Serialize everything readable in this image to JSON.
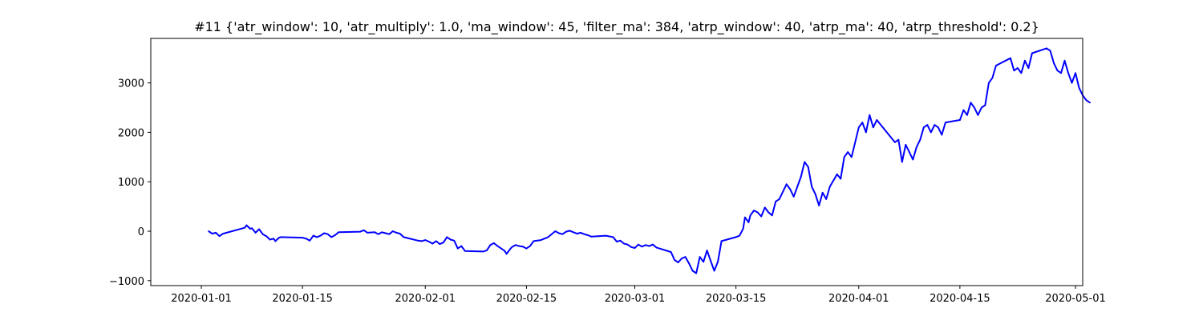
{
  "chart_data": {
    "type": "line",
    "title": "#11 {'atr_window': 10, 'atr_multiply': 1.0, 'ma_window': 45, 'filter_ma': 384, 'atrp_window': 40, 'atrp_ma': 40, 'atrp_threshold': 0.2}",
    "xlabel": "",
    "ylabel": "",
    "x_axis_type": "date",
    "xlim": [
      "2019-12-25",
      "2020-05-02"
    ],
    "ylim": [
      -1100,
      3900
    ],
    "x_ticks": [
      "2020-01-01",
      "2020-01-15",
      "2020-02-01",
      "2020-02-15",
      "2020-03-01",
      "2020-03-15",
      "2020-04-01",
      "2020-04-15",
      "2020-05-01"
    ],
    "y_ticks": [
      -1000,
      0,
      1000,
      2000,
      3000
    ],
    "grid": false,
    "legend": "none",
    "series": [
      {
        "color": "#0000ff",
        "points": [
          [
            "2020-01-02",
            0
          ],
          [
            "2020-01-02 12:00",
            -50
          ],
          [
            "2020-01-03",
            -30
          ],
          [
            "2020-01-03 12:00",
            -100
          ],
          [
            "2020-01-04",
            -50
          ],
          [
            "2020-01-04 12:00",
            -30
          ],
          [
            "2020-01-07",
            70
          ],
          [
            "2020-01-07 06:00",
            120
          ],
          [
            "2020-01-07 18:00",
            50
          ],
          [
            "2020-01-08",
            60
          ],
          [
            "2020-01-08 12:00",
            -30
          ],
          [
            "2020-01-09",
            40
          ],
          [
            "2020-01-09 12:00",
            -60
          ],
          [
            "2020-01-10",
            -100
          ],
          [
            "2020-01-10 12:00",
            -170
          ],
          [
            "2020-01-11",
            -150
          ],
          [
            "2020-01-11 06:00",
            -200
          ],
          [
            "2020-01-11 18:00",
            -130
          ],
          [
            "2020-01-12",
            -120
          ],
          [
            "2020-01-15",
            -130
          ],
          [
            "2020-01-15 12:00",
            -150
          ],
          [
            "2020-01-16",
            -190
          ],
          [
            "2020-01-16 12:00",
            -90
          ],
          [
            "2020-01-17",
            -120
          ],
          [
            "2020-01-17 12:00",
            -90
          ],
          [
            "2020-01-18",
            -40
          ],
          [
            "2020-01-18 12:00",
            -60
          ],
          [
            "2020-01-19",
            -120
          ],
          [
            "2020-01-19 12:00",
            -80
          ],
          [
            "2020-01-20",
            -20
          ],
          [
            "2020-01-23",
            -10
          ],
          [
            "2020-01-23 12:00",
            20
          ],
          [
            "2020-01-24",
            -30
          ],
          [
            "2020-01-25",
            -20
          ],
          [
            "2020-01-25 12:00",
            -60
          ],
          [
            "2020-01-26",
            -20
          ],
          [
            "2020-01-26 12:00",
            -40
          ],
          [
            "2020-01-27",
            -60
          ],
          [
            "2020-01-27 12:00",
            0
          ],
          [
            "2020-01-28",
            -30
          ],
          [
            "2020-01-28 12:00",
            -50
          ],
          [
            "2020-01-29",
            -120
          ],
          [
            "2020-01-31",
            -190
          ],
          [
            "2020-01-31 12:00",
            -200
          ],
          [
            "2020-02-01",
            -180
          ],
          [
            "2020-02-01 12:00",
            -210
          ],
          [
            "2020-02-02",
            -250
          ],
          [
            "2020-02-02 12:00",
            -200
          ],
          [
            "2020-02-03",
            -260
          ],
          [
            "2020-02-03 12:00",
            -230
          ],
          [
            "2020-02-04",
            -120
          ],
          [
            "2020-02-04 12:00",
            -170
          ],
          [
            "2020-02-05",
            -190
          ],
          [
            "2020-02-05 12:00",
            -350
          ],
          [
            "2020-02-06",
            -300
          ],
          [
            "2020-02-06 12:00",
            -400
          ],
          [
            "2020-02-09",
            -410
          ],
          [
            "2020-02-09 12:00",
            -390
          ],
          [
            "2020-02-10",
            -280
          ],
          [
            "2020-02-10 12:00",
            -240
          ],
          [
            "2020-02-11",
            -300
          ],
          [
            "2020-02-11 12:00",
            -350
          ],
          [
            "2020-02-12",
            -400
          ],
          [
            "2020-02-12 06:00",
            -460
          ],
          [
            "2020-02-12 18:00",
            -360
          ],
          [
            "2020-02-13",
            -320
          ],
          [
            "2020-02-13 12:00",
            -280
          ],
          [
            "2020-02-14",
            -300
          ],
          [
            "2020-02-14 12:00",
            -310
          ],
          [
            "2020-02-15",
            -350
          ],
          [
            "2020-02-15 12:00",
            -300
          ],
          [
            "2020-02-16",
            -200
          ],
          [
            "2020-02-17",
            -180
          ],
          [
            "2020-02-18",
            -120
          ],
          [
            "2020-02-19",
            0
          ],
          [
            "2020-02-19 12:00",
            -40
          ],
          [
            "2020-02-20",
            -60
          ],
          [
            "2020-02-20 12:00",
            -10
          ],
          [
            "2020-02-21",
            10
          ],
          [
            "2020-02-21 12:00",
            -20
          ],
          [
            "2020-02-22",
            -50
          ],
          [
            "2020-02-22 12:00",
            -30
          ],
          [
            "2020-02-23",
            -60
          ],
          [
            "2020-02-23 12:00",
            -80
          ],
          [
            "2020-02-24",
            -110
          ],
          [
            "2020-02-26",
            -90
          ],
          [
            "2020-02-27",
            -120
          ],
          [
            "2020-02-27 12:00",
            -210
          ],
          [
            "2020-02-28",
            -190
          ],
          [
            "2020-02-28 12:00",
            -250
          ],
          [
            "2020-02-29",
            -270
          ],
          [
            "2020-02-29 12:00",
            -320
          ],
          [
            "2020-03-01",
            -340
          ],
          [
            "2020-03-01 12:00",
            -270
          ],
          [
            "2020-03-02",
            -310
          ],
          [
            "2020-03-02 12:00",
            -280
          ],
          [
            "2020-03-03",
            -300
          ],
          [
            "2020-03-03 12:00",
            -270
          ],
          [
            "2020-03-04",
            -330
          ],
          [
            "2020-03-06",
            -420
          ],
          [
            "2020-03-06 12:00",
            -580
          ],
          [
            "2020-03-07",
            -630
          ],
          [
            "2020-03-07 12:00",
            -550
          ],
          [
            "2020-03-08",
            -520
          ],
          [
            "2020-03-08 12:00",
            -650
          ],
          [
            "2020-03-09",
            -800
          ],
          [
            "2020-03-09 12:00",
            -850
          ],
          [
            "2020-03-10",
            -520
          ],
          [
            "2020-03-10 12:00",
            -620
          ],
          [
            "2020-03-11",
            -390
          ],
          [
            "2020-03-11 12:00",
            -600
          ],
          [
            "2020-03-12",
            -800
          ],
          [
            "2020-03-12 12:00",
            -620
          ],
          [
            "2020-03-13",
            -200
          ],
          [
            "2020-03-15",
            -120
          ],
          [
            "2020-03-15 12:00",
            -90
          ],
          [
            "2020-03-16",
            50
          ],
          [
            "2020-03-16 06:00",
            280
          ],
          [
            "2020-03-16 18:00",
            180
          ],
          [
            "2020-03-17",
            320
          ],
          [
            "2020-03-17 12:00",
            420
          ],
          [
            "2020-03-18",
            380
          ],
          [
            "2020-03-18 12:00",
            300
          ],
          [
            "2020-03-19",
            480
          ],
          [
            "2020-03-19 12:00",
            380
          ],
          [
            "2020-03-20",
            320
          ],
          [
            "2020-03-20 12:00",
            600
          ],
          [
            "2020-03-21",
            650
          ],
          [
            "2020-03-22",
            950
          ],
          [
            "2020-03-22 12:00",
            850
          ],
          [
            "2020-03-23",
            700
          ],
          [
            "2020-03-23 12:00",
            900
          ],
          [
            "2020-03-24",
            1100
          ],
          [
            "2020-03-24 12:00",
            1400
          ],
          [
            "2020-03-25",
            1300
          ],
          [
            "2020-03-25 12:00",
            900
          ],
          [
            "2020-03-26",
            750
          ],
          [
            "2020-03-26 12:00",
            520
          ],
          [
            "2020-03-27",
            780
          ],
          [
            "2020-03-27 12:00",
            650
          ],
          [
            "2020-03-28",
            900
          ],
          [
            "2020-03-29",
            1150
          ],
          [
            "2020-03-29 12:00",
            1060
          ],
          [
            "2020-03-30",
            1500
          ],
          [
            "2020-03-30 12:00",
            1600
          ],
          [
            "2020-03-31",
            1500
          ],
          [
            "2020-03-31 12:00",
            1800
          ],
          [
            "2020-04-01",
            2100
          ],
          [
            "2020-04-01 12:00",
            2200
          ],
          [
            "2020-04-02",
            2000
          ],
          [
            "2020-04-02 12:00",
            2350
          ],
          [
            "2020-04-03",
            2100
          ],
          [
            "2020-04-03 12:00",
            2250
          ],
          [
            "2020-04-06",
            1800
          ],
          [
            "2020-04-06 12:00",
            1850
          ],
          [
            "2020-04-07",
            1400
          ],
          [
            "2020-04-07 12:00",
            1750
          ],
          [
            "2020-04-08",
            1600
          ],
          [
            "2020-04-08 12:00",
            1450
          ],
          [
            "2020-04-09",
            1700
          ],
          [
            "2020-04-09 12:00",
            1850
          ],
          [
            "2020-04-10",
            2100
          ],
          [
            "2020-04-10 12:00",
            2150
          ],
          [
            "2020-04-11",
            2000
          ],
          [
            "2020-04-11 12:00",
            2150
          ],
          [
            "2020-04-12",
            2100
          ],
          [
            "2020-04-12 12:00",
            1950
          ],
          [
            "2020-04-13",
            2200
          ],
          [
            "2020-04-15",
            2250
          ],
          [
            "2020-04-15 12:00",
            2450
          ],
          [
            "2020-04-16",
            2350
          ],
          [
            "2020-04-16 12:00",
            2600
          ],
          [
            "2020-04-17",
            2500
          ],
          [
            "2020-04-17 12:00",
            2350
          ],
          [
            "2020-04-18",
            2500
          ],
          [
            "2020-04-18 12:00",
            2550
          ],
          [
            "2020-04-19",
            3000
          ],
          [
            "2020-04-19 12:00",
            3100
          ],
          [
            "2020-04-20",
            3350
          ],
          [
            "2020-04-22",
            3500
          ],
          [
            "2020-04-22 12:00",
            3250
          ],
          [
            "2020-04-23",
            3300
          ],
          [
            "2020-04-23 12:00",
            3200
          ],
          [
            "2020-04-24",
            3450
          ],
          [
            "2020-04-24 12:00",
            3300
          ],
          [
            "2020-04-25",
            3600
          ],
          [
            "2020-04-27",
            3700
          ],
          [
            "2020-04-27 12:00",
            3650
          ],
          [
            "2020-04-28",
            3400
          ],
          [
            "2020-04-28 12:00",
            3250
          ],
          [
            "2020-04-29",
            3200
          ],
          [
            "2020-04-29 12:00",
            3450
          ],
          [
            "2020-04-30",
            3200
          ],
          [
            "2020-04-30 12:00",
            3000
          ],
          [
            "2020-05-01",
            3200
          ],
          [
            "2020-05-01 12:00",
            2900
          ],
          [
            "2020-05-02",
            2750
          ],
          [
            "2020-05-02 12:00",
            2650
          ],
          [
            "2020-05-03",
            2600
          ]
        ]
      }
    ]
  }
}
